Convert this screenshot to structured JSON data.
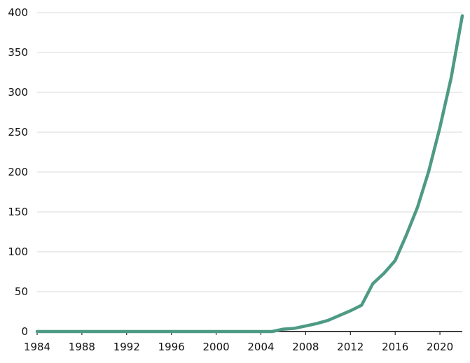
{
  "chart_data": {
    "type": "line",
    "title": "",
    "xlabel": "",
    "ylabel": "",
    "xlim": [
      1984,
      2022
    ],
    "ylim": [
      0,
      400
    ],
    "grid": true,
    "legend": "none",
    "x_ticks": [
      "1984",
      "1988",
      "1992",
      "1996",
      "2000",
      "2004",
      "2008",
      "2012",
      "2016",
      "2020"
    ],
    "y_ticks": [
      "0",
      "50",
      "100",
      "150",
      "200",
      "250",
      "300",
      "350",
      "400"
    ],
    "series": [
      {
        "color": "#4e9a84",
        "x": [
          1984,
          1985,
          1986,
          1987,
          1988,
          1989,
          1990,
          1991,
          1992,
          1993,
          1994,
          1995,
          1996,
          1997,
          1998,
          1999,
          2000,
          2001,
          2002,
          2003,
          2004,
          2005,
          2006,
          2007,
          2008,
          2009,
          2010,
          2011,
          2012,
          2013,
          2014,
          2015,
          2016,
          2017,
          2018,
          2019,
          2020,
          2021,
          2022
        ],
        "values": [
          0,
          0,
          0,
          0,
          0,
          0,
          0,
          0,
          0,
          0,
          0,
          0,
          0,
          0,
          0,
          0,
          0,
          0,
          0,
          0,
          0,
          0,
          3,
          4,
          7,
          10,
          14,
          20,
          26,
          33,
          60,
          73,
          89,
          121,
          156,
          201,
          256,
          318,
          396
        ]
      }
    ]
  }
}
